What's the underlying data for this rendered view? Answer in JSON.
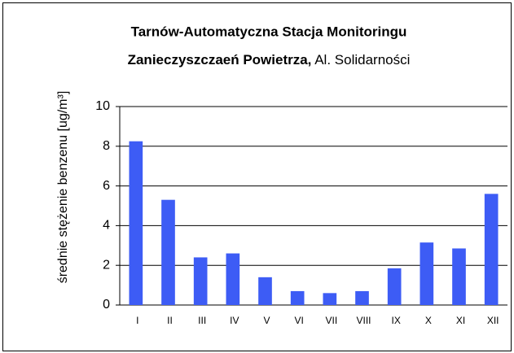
{
  "chart_data": {
    "type": "bar",
    "title_lines": [
      "Tarnów-Automatyczna Stacja Monitoringu",
      "Zanieczyszczaeń Powietrza,"
    ],
    "subtitle": "Al. Solidarności",
    "y_label": "średnie stężenie benzenu  [ug/m³]",
    "categories": [
      "I",
      "II",
      "III",
      "IV",
      "V",
      "VI",
      "VII",
      "VIII",
      "IX",
      "X",
      "XI",
      "XII"
    ],
    "values": [
      8.25,
      5.3,
      2.4,
      2.6,
      1.4,
      0.7,
      0.6,
      0.7,
      1.85,
      3.15,
      2.85,
      5.6
    ],
    "color": "#3d5cf5",
    "ylim": [
      0,
      10
    ],
    "yticks": [
      0,
      2,
      4,
      6,
      8,
      10
    ],
    "grid": true
  }
}
